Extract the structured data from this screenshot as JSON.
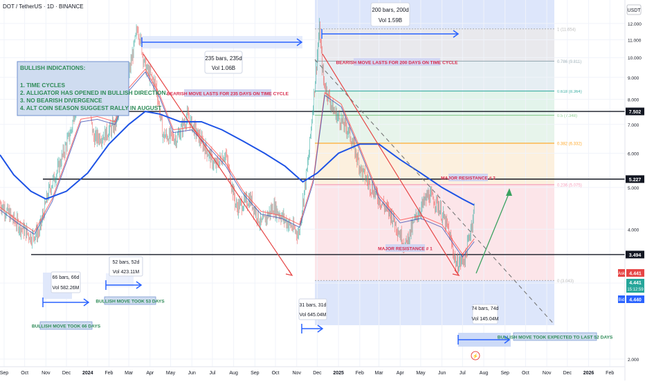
{
  "header": {
    "symbol_line": "DOT / TetherUS · 1D · BINANCE",
    "currency": "USDT"
  },
  "chart_data": {
    "type": "line",
    "scale": "log",
    "y_ticks": [
      "12.000",
      "11.000",
      "10.000",
      "9.000",
      "8.000",
      "7.000",
      "6.000",
      "5.000",
      "4.000",
      "3.000",
      "2.000"
    ],
    "y_tick_values": [
      12,
      11,
      10,
      9,
      8,
      7,
      6,
      5,
      4,
      3,
      2
    ],
    "ylim": [
      1.92,
      13.6
    ],
    "x_ticks": [
      "Sep",
      "Oct",
      "Nov",
      "Dec",
      "2024",
      "Feb",
      "Mar",
      "Apr",
      "May",
      "Jun",
      "Jul",
      "Aug",
      "Sep",
      "Oct",
      "Nov",
      "Dec",
      "2025",
      "Feb",
      "Mar",
      "Apr",
      "May",
      "Jun",
      "Jul",
      "Aug",
      "Sep",
      "Oct",
      "Nov",
      "Dec",
      "2026",
      "Feb"
    ],
    "x_tick_dates": [
      "2023-09-01",
      "2023-10-01",
      "2023-11-01",
      "2023-12-01",
      "2024-01-01",
      "2024-02-01",
      "2024-03-01",
      "2024-04-01",
      "2024-05-01",
      "2024-06-01",
      "2024-07-01",
      "2024-08-01",
      "2024-09-01",
      "2024-10-01",
      "2024-11-01",
      "2024-12-01",
      "2025-01-01",
      "2025-02-01",
      "2025-03-01",
      "2025-04-01",
      "2025-05-01",
      "2025-06-01",
      "2025-07-01",
      "2025-08-01",
      "2025-09-01",
      "2025-10-01",
      "2025-11-01",
      "2025-12-01",
      "2026-01-01",
      "2026-02-01"
    ],
    "xlim": [
      "2023-08-26",
      "2026-02-23"
    ],
    "bold_ticks": [
      "2024",
      "2025",
      "2026"
    ],
    "price_path": [
      [
        "2023-08-26",
        4.6
      ],
      [
        "2023-09-15",
        4.2
      ],
      [
        "2023-10-10",
        3.85
      ],
      [
        "2023-10-22",
        3.95
      ],
      [
        "2023-11-05",
        4.9
      ],
      [
        "2023-11-20",
        5.6
      ],
      [
        "2023-12-08",
        6.8
      ],
      [
        "2023-12-20",
        8.7
      ],
      [
        "2024-01-01",
        8.0
      ],
      [
        "2024-01-10",
        6.5
      ],
      [
        "2024-01-25",
        6.6
      ],
      [
        "2024-02-10",
        7.0
      ],
      [
        "2024-02-25",
        8.3
      ],
      [
        "2024-03-14",
        11.8
      ],
      [
        "2024-03-25",
        9.5
      ],
      [
        "2024-04-10",
        8.6
      ],
      [
        "2024-04-20",
        6.6
      ],
      [
        "2024-05-10",
        6.5
      ],
      [
        "2024-05-25",
        7.3
      ],
      [
        "2024-06-10",
        6.6
      ],
      [
        "2024-06-25",
        6.0
      ],
      [
        "2024-07-05",
        5.6
      ],
      [
        "2024-07-20",
        6.0
      ],
      [
        "2024-08-05",
        4.5
      ],
      [
        "2024-08-25",
        4.7
      ],
      [
        "2024-09-10",
        4.1
      ],
      [
        "2024-09-28",
        4.5
      ],
      [
        "2024-10-15",
        4.2
      ],
      [
        "2024-11-04",
        3.9
      ],
      [
        "2024-11-18",
        5.8
      ],
      [
        "2024-12-04",
        11.6
      ],
      [
        "2024-12-10",
        8.8
      ],
      [
        "2024-12-25",
        7.5
      ],
      [
        "2025-01-15",
        6.8
      ],
      [
        "2025-02-03",
        5.5
      ],
      [
        "2025-02-18",
        5.0
      ],
      [
        "2025-03-05",
        4.6
      ],
      [
        "2025-03-20",
        4.3
      ],
      [
        "2025-04-08",
        3.65
      ],
      [
        "2025-04-25",
        4.3
      ],
      [
        "2025-05-12",
        4.8
      ],
      [
        "2025-05-25",
        4.6
      ],
      [
        "2025-06-10",
        4.0
      ],
      [
        "2025-06-22",
        3.3
      ],
      [
        "2025-07-05",
        3.45
      ],
      [
        "2025-07-14",
        4.1
      ],
      [
        "2025-07-18",
        4.44
      ]
    ],
    "ma_fast": [
      [
        "2023-08-26",
        4.5
      ],
      [
        "2023-09-20",
        4.2
      ],
      [
        "2023-10-15",
        3.95
      ],
      [
        "2023-11-10",
        4.7
      ],
      [
        "2023-12-01",
        5.8
      ],
      [
        "2023-12-22",
        7.2
      ],
      [
        "2024-01-15",
        7.3
      ],
      [
        "2024-02-10",
        7.1
      ],
      [
        "2024-03-01",
        8.5
      ],
      [
        "2024-03-25",
        9.4
      ],
      [
        "2024-04-15",
        8.2
      ],
      [
        "2024-05-05",
        6.8
      ],
      [
        "2024-06-01",
        6.9
      ],
      [
        "2024-06-25",
        6.3
      ],
      [
        "2024-07-20",
        5.7
      ],
      [
        "2024-08-15",
        4.9
      ],
      [
        "2024-09-10",
        4.4
      ],
      [
        "2024-10-10",
        4.3
      ],
      [
        "2024-11-05",
        4.1
      ],
      [
        "2024-11-25",
        5.2
      ],
      [
        "2024-12-12",
        8.3
      ],
      [
        "2025-01-05",
        7.8
      ],
      [
        "2025-02-01",
        6.2
      ],
      [
        "2025-03-01",
        4.8
      ],
      [
        "2025-04-01",
        4.2
      ],
      [
        "2025-05-01",
        4.3
      ],
      [
        "2025-06-01",
        4.1
      ],
      [
        "2025-07-01",
        3.5
      ],
      [
        "2025-07-18",
        3.8
      ]
    ],
    "ma_200": [
      [
        "2023-08-26",
        5.95
      ],
      [
        "2023-09-15",
        5.35
      ],
      [
        "2023-10-10",
        4.9
      ],
      [
        "2023-11-01",
        4.7
      ],
      [
        "2023-12-01",
        4.9
      ],
      [
        "2024-01-01",
        5.4
      ],
      [
        "2024-02-01",
        6.3
      ],
      [
        "2024-03-01",
        7.0
      ],
      [
        "2024-03-25",
        7.5
      ],
      [
        "2024-04-15",
        7.4
      ],
      [
        "2024-05-15",
        7.1
      ],
      [
        "2024-06-15",
        7.1
      ],
      [
        "2024-07-15",
        6.8
      ],
      [
        "2024-08-15",
        6.4
      ],
      [
        "2024-09-15",
        6.0
      ],
      [
        "2024-10-15",
        5.6
      ],
      [
        "2024-11-10",
        5.15
      ],
      [
        "2024-12-01",
        5.4
      ],
      [
        "2025-01-01",
        6.0
      ],
      [
        "2025-02-01",
        6.3
      ],
      [
        "2025-03-01",
        6.3
      ],
      [
        "2025-04-01",
        5.8
      ],
      [
        "2025-05-01",
        5.4
      ],
      [
        "2025-06-01",
        5.0
      ],
      [
        "2025-07-01",
        4.7
      ],
      [
        "2025-07-18",
        4.55
      ]
    ],
    "series_colors": {
      "price_up": "#26a69a",
      "price_down": "#ef5350",
      "ma_fast_1": "#ff5252",
      "ma_fast_2": "#3f51b5",
      "ma_200": "#1e53e5"
    }
  },
  "levels": {
    "resistance_2": {
      "value": 7.502,
      "label": "7.502"
    },
    "resistance_1": {
      "value": 5.227,
      "label": "5.227"
    },
    "support": {
      "value": 3.494,
      "label": "3.494"
    }
  },
  "fib": {
    "levels": [
      {
        "ratio": 1,
        "value": 11.654,
        "label": "1 (11.654)"
      },
      {
        "ratio": 0.786,
        "value": 9.811,
        "label": "0.786 (9.811)"
      },
      {
        "ratio": 0.618,
        "value": 8.364,
        "label": "0.618 (8.364)"
      },
      {
        "ratio": 0.5,
        "value": 7.348,
        "label": "0.5 (7.348)"
      },
      {
        "ratio": 0.382,
        "value": 6.332,
        "label": "0.382 (6.332)"
      },
      {
        "ratio": 0.236,
        "value": 5.075,
        "label": "0.236 (5.075)"
      },
      {
        "ratio": 0,
        "value": 3.043,
        "label": "0 (3.043)"
      }
    ],
    "zone_colors": [
      "#e9e9ec",
      "#e6eef2",
      "#e3f4ea",
      "#e7f4ea",
      "#fdf0dc",
      "#fde5e8"
    ],
    "line_colors": [
      "#b0b0b0",
      "#90a4ae",
      "#26a69a",
      "#81c784",
      "#ff9800",
      "#f48fb1",
      "#b0b0b0"
    ]
  },
  "annotations": {
    "bullish_title": "BULLISH INDICATIONS:",
    "bullish_items": [
      "1. TIME CYCLES",
      "2. ALLIGATOR HAS OPENED IN BULLISH DIRECTION.",
      "3. NO BEARISH DIVERGENCE",
      "4. ALT COIN SEASON SUGGEST RALLY IN AUGUST"
    ],
    "bearish_235": "BEARISH MOVE LASTS FOR 235 DAYS ON TIME CYCLE",
    "bearish_200": "BEARISH MOVE LASTS FOR 200 DAYS ON TIME CYCLE",
    "major_res_2": "MAJOR RESISTANCE # 2",
    "major_res_1": "MAJOR RESISTANCE # 1",
    "bull_53": "BULLISH MOVE TOOK 53 DAYS",
    "bull_66": "BULLISH MOVE TOOK 66 DAYS",
    "bull_52": "BULLISH MOVE TOOK EXPECTED TO LAST 52 DAYS"
  },
  "measures": {
    "m235": {
      "bars": "235 bars, 235d",
      "vol": "Vol 1.06B"
    },
    "m200": {
      "bars": "200 bars, 200d",
      "vol": "Vol 1.59B"
    },
    "m66": {
      "bars": "66 bars, 66d",
      "vol": "Vol 582.26M"
    },
    "m52": {
      "bars": "52 bars, 52d",
      "vol": "Vol 423.11M"
    },
    "m31": {
      "bars": "31 bars, 31d",
      "vol": "Vol 645.04M"
    },
    "m74": {
      "bars": "74 bars, 74d",
      "vol": "Vol 145.04M"
    }
  },
  "price_scale": {
    "ask_label": "Ask",
    "ask_value": "4.441",
    "last_value": "4.441",
    "countdown": "15:12:59",
    "bid_label": "Bid",
    "bid_value": "4.440"
  },
  "event_marker": "⚡",
  "colors": {
    "accent_blue": "#2962ff",
    "bull_green": "#3aa160",
    "bear_red": "#e64545",
    "bull_box_bg": "#cfdcf0",
    "bull_box_border": "#6f8fcf",
    "bull_text": "#2e8b57",
    "red_label_bg": "#d2d6f2",
    "red_label_text": "#d8284a",
    "time_shade": "#dde6fb"
  }
}
